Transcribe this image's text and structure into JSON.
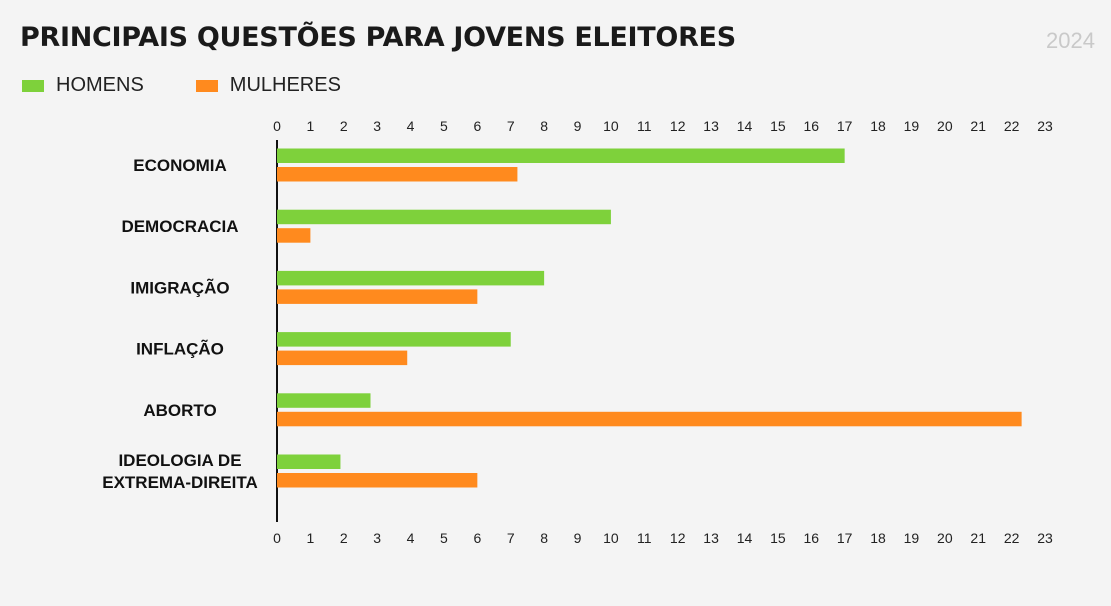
{
  "header": {
    "title": "PRINCIPAIS QUESTÕES PARA JOVENS ELEITORES",
    "year": "2024"
  },
  "colors": {
    "homens": "#7ed13b",
    "mulheres": "#ff8a1e",
    "axis": "#111111"
  },
  "chart_data": {
    "type": "bar",
    "orientation": "horizontal",
    "title": "PRINCIPAIS QUESTÕES PARA JOVENS ELEITORES",
    "categories": [
      "ECONOMIA",
      "DEMOCRACIA",
      "IMIGRAÇÃO",
      "INFLAÇÃO",
      "ABORTO",
      "IDEOLOGIA DE EXTREMA-DIREITA"
    ],
    "category_lines": [
      [
        "ECONOMIA"
      ],
      [
        "DEMOCRACIA"
      ],
      [
        "IMIGRAÇÃO"
      ],
      [
        "INFLAÇÃO"
      ],
      [
        "ABORTO"
      ],
      [
        "IDEOLOGIA DE",
        "EXTREMA-DIREITA"
      ]
    ],
    "series": [
      {
        "name": "HOMENS",
        "values": [
          17,
          10,
          8,
          7,
          2.8,
          1.9
        ]
      },
      {
        "name": "MULHERES",
        "values": [
          7.2,
          1,
          6,
          3.9,
          22.3,
          6
        ]
      }
    ],
    "xlim": [
      0,
      23
    ],
    "xticks": [
      "0",
      "1",
      "2",
      "3",
      "4",
      "5",
      "6",
      "7",
      "8",
      "9",
      "10",
      "11",
      "12",
      "13",
      "14",
      "15",
      "16",
      "17",
      "18",
      "19",
      "20",
      "21",
      "22",
      "23"
    ],
    "xlabel": "",
    "ylabel": "",
    "grid": false,
    "legend_position": "top-left"
  }
}
